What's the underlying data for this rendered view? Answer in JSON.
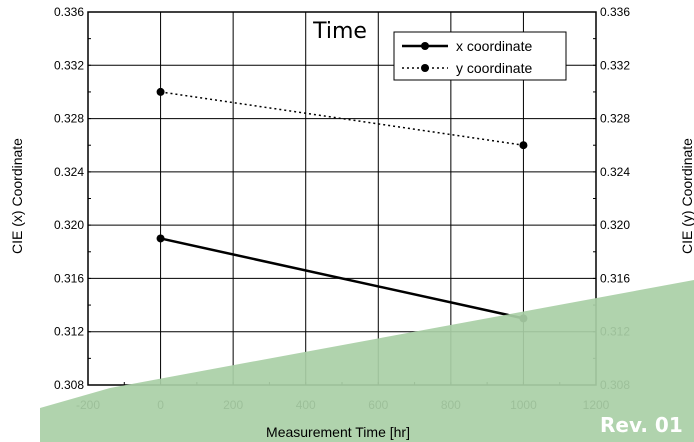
{
  "chart_data": {
    "type": "line",
    "title": "Time",
    "xlabel": "Measurement Time [hr]",
    "ylabel_left": "CIE (x) Coordinate",
    "ylabel_right": "CIE (y) Coordinate",
    "xlim": [
      -200,
      1200
    ],
    "ylim": [
      0.308,
      0.336
    ],
    "x_ticks": [
      "-200",
      "0",
      "200",
      "400",
      "600",
      "800",
      "1000",
      "1200"
    ],
    "y_ticks": [
      "0.308",
      "0.312",
      "0.316",
      "0.320",
      "0.324",
      "0.328",
      "0.332",
      "0.336"
    ],
    "grid": true,
    "legend_position": "top-right",
    "series": [
      {
        "name": "x coordinate",
        "style": "solid",
        "x": [
          0,
          1000
        ],
        "y": [
          0.319,
          0.313
        ]
      },
      {
        "name": "y coordinate",
        "style": "dotted",
        "x": [
          0,
          1000
        ],
        "y": [
          0.33,
          0.326
        ]
      }
    ]
  },
  "watermark": {
    "text": "Rev. 01",
    "band_color": "#a9cfa6"
  }
}
